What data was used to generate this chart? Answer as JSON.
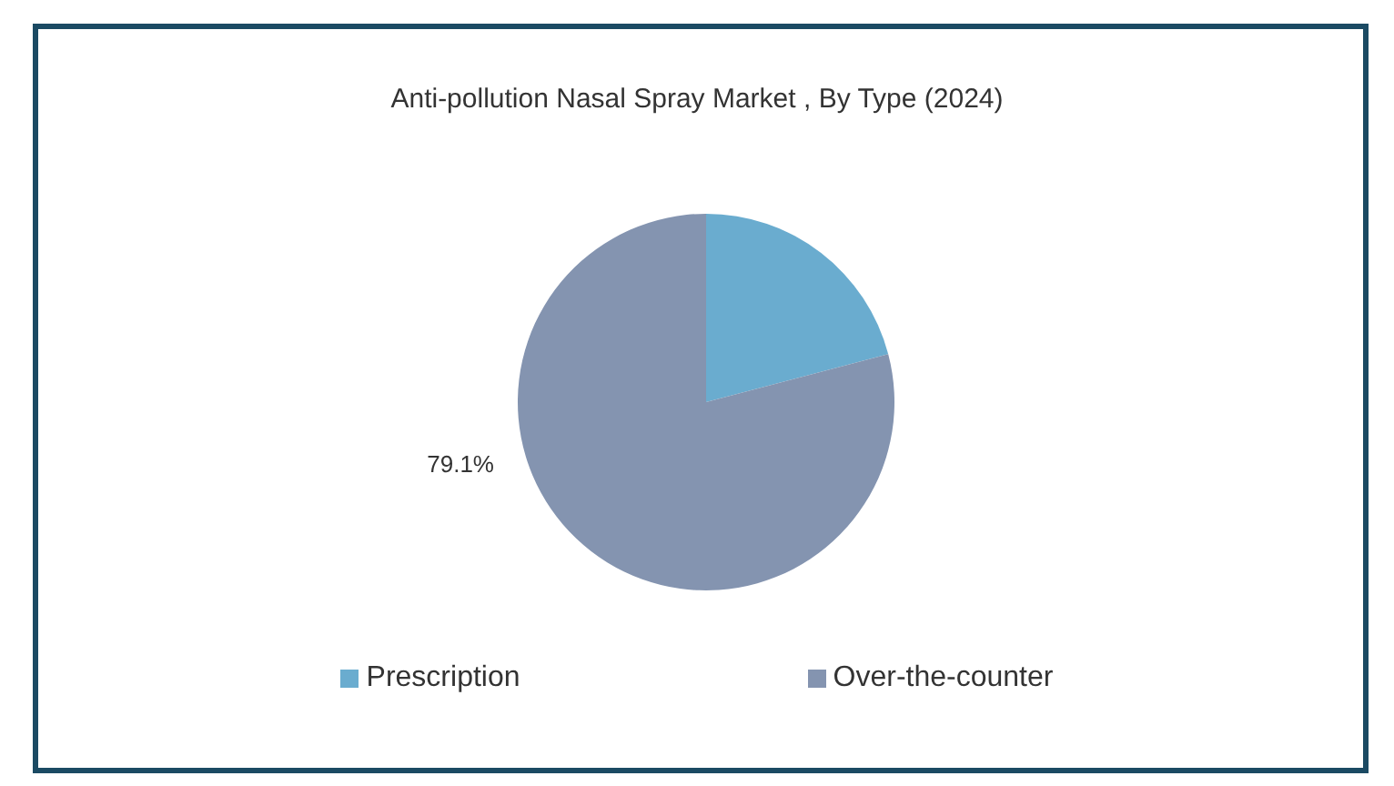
{
  "chart_data": {
    "type": "pie",
    "title": "Anti-pollution Nasal Spray Market , By Type (2024)",
    "categories": [
      "Prescription",
      "Over-the-counter"
    ],
    "values": [
      20.9,
      79.1
    ],
    "colors": [
      "#6aaccf",
      "#8494b0"
    ],
    "value_labels": [
      null,
      "79.1%"
    ],
    "legend": "bottom"
  }
}
